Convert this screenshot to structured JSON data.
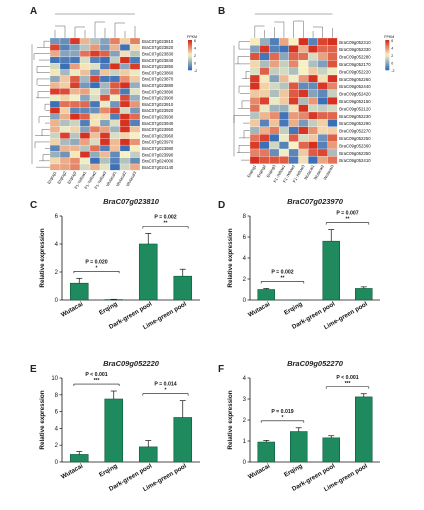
{
  "panel_labels": [
    "A",
    "B",
    "C",
    "D",
    "E",
    "F"
  ],
  "colors": {
    "bar": "#1e8a5e",
    "bar_edge": "#0f5a3a",
    "axis": "#111111",
    "heat_low": "#3b6fb6",
    "heat_mid": "#f7f2c4",
    "heat_high": "#d7301f"
  },
  "heatmap_A": {
    "legend_title": "FPKM",
    "legend_ticks": [
      "6",
      "4",
      "2",
      "0",
      "-2"
    ],
    "columns": [
      "Erqing1",
      "Erqing2",
      "Erqing3",
      "F1-Yellow1",
      "F1-Yellow2",
      "F1-Yellow3",
      "Wutacai1",
      "Wutacai2",
      "Wutacai3"
    ],
    "rows": [
      "BraC07g023810",
      "BraC07g023820",
      "BraC07g023830",
      "BraC07g023840",
      "BraC07g023850",
      "BraC07g023860",
      "BraC07g023870",
      "BraC07g023880",
      "BraC07g023890",
      "BraC07g023900",
      "BraC07g023910",
      "BraC07g023920",
      "BraC07g023930",
      "BraC07g023940",
      "BraC07g023950",
      "BraC07g023960",
      "BraC07g023970",
      "BraC07g023980",
      "BraC07g023990",
      "BraC07g024000",
      "BraC07g024140"
    ]
  },
  "heatmap_B": {
    "legend_title": "FPKM",
    "legend_ticks": [
      "6",
      "4",
      "2",
      "0",
      "-2"
    ],
    "columns": [
      "Erqing1",
      "Erqing2",
      "Erqing3",
      "F1-Yellow1",
      "F1-Yellow2",
      "F1-Yellow3",
      "Wutacai1",
      "Wutacai2",
      "Wutacai3"
    ],
    "rows": [
      "BraC09g052310",
      "BraC09g052330",
      "BraC09g052280",
      "BraC09g052170",
      "BraC09g052220",
      "BraC09g052260",
      "BraC09g052440",
      "BraC09g052420",
      "BraC09g052150",
      "BraC09g052120",
      "BraC09g052230",
      "BraC09g052290",
      "BraC09g052270",
      "BraC09g052250",
      "BraC09g052360",
      "BraC09g052350",
      "BraC09g052410"
    ]
  },
  "chart_data": [
    {
      "panel": "C",
      "type": "bar",
      "title": "BraC07g023810",
      "ylabel": "Relative expression",
      "categories": [
        "Wutacai",
        "Erqing",
        "Dark-green pool",
        "Lime-green pool"
      ],
      "values": [
        1.2,
        0.03,
        4.0,
        1.7
      ],
      "errors": [
        0.35,
        0.02,
        0.75,
        0.5
      ],
      "ylim": [
        0,
        6
      ],
      "yticks": [
        0,
        2,
        4,
        6
      ],
      "annotations": [
        {
          "from": 0,
          "to": 1,
          "p": "P = 0.020",
          "stars": "*"
        },
        {
          "from": 2,
          "to": 3,
          "p": "P = 0.002",
          "stars": "**"
        }
      ]
    },
    {
      "panel": "D",
      "type": "bar",
      "title": "BraC07g023970",
      "ylabel": "Relative expression",
      "categories": [
        "Wutacai",
        "Erqing",
        "Dark-green pool",
        "Lime-green pool"
      ],
      "values": [
        1.0,
        0.0,
        5.6,
        1.1
      ],
      "errors": [
        0.1,
        0.0,
        1.1,
        0.15
      ],
      "ylim": [
        0,
        8
      ],
      "yticks": [
        0,
        2,
        4,
        6,
        8
      ],
      "annotations": [
        {
          "from": 0,
          "to": 1,
          "p": "P = 0.002",
          "stars": "**"
        },
        {
          "from": 2,
          "to": 3,
          "p": "P = 0.007",
          "stars": "**"
        }
      ]
    },
    {
      "panel": "E",
      "type": "bar",
      "title": "BraC09g052220",
      "ylabel": "Relative expression",
      "categories": [
        "Wutacai",
        "Erqing",
        "Dark-green pool",
        "Lime-green pool"
      ],
      "values": [
        0.9,
        7.5,
        1.8,
        5.3
      ],
      "errors": [
        0.35,
        0.95,
        0.75,
        2.0
      ],
      "ylim": [
        0,
        10
      ],
      "yticks": [
        0,
        2,
        4,
        6,
        8,
        10
      ],
      "annotations": [
        {
          "from": 0,
          "to": 1,
          "p": "P < 0.001",
          "stars": "***"
        },
        {
          "from": 2,
          "to": 3,
          "p": "P = 0.014",
          "stars": "*"
        }
      ]
    },
    {
      "panel": "F",
      "type": "bar",
      "title": "BraC09g052270",
      "ylabel": "Relative expression",
      "categories": [
        "Wutacai",
        "Erqing",
        "Dark-green pool",
        "Lime-green pool"
      ],
      "values": [
        0.95,
        1.45,
        1.15,
        3.1
      ],
      "errors": [
        0.08,
        0.18,
        0.1,
        0.15
      ],
      "ylim": [
        0,
        4
      ],
      "yticks": [
        0,
        1,
        2,
        3,
        4
      ],
      "annotations": [
        {
          "from": 0,
          "to": 1,
          "p": "P = 0.019",
          "stars": "*"
        },
        {
          "from": 2,
          "to": 3,
          "p": "P < 0.001",
          "stars": "***"
        }
      ]
    }
  ]
}
